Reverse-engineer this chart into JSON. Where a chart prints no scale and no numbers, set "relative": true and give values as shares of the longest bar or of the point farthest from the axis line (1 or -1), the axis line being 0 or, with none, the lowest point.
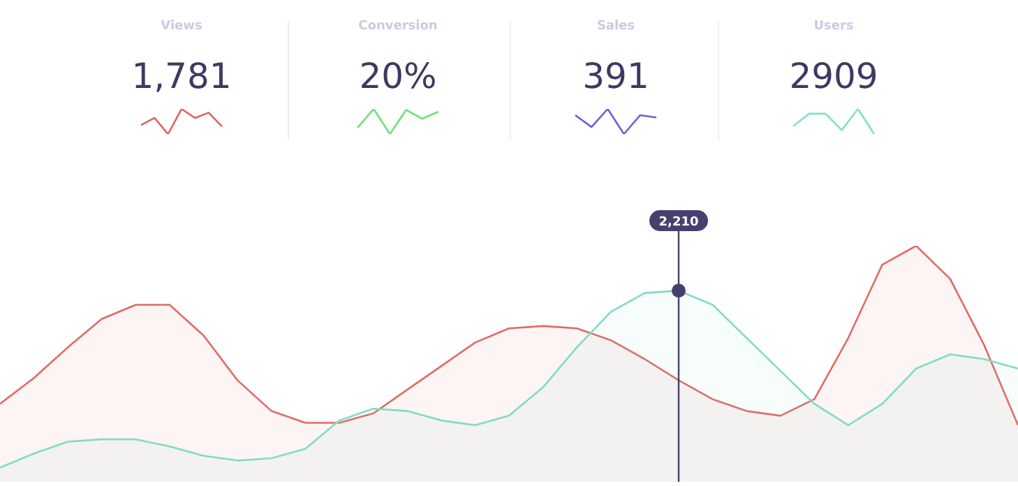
{
  "chart_data": [
    {
      "type": "line",
      "title": "Views",
      "annotations": [
        "1,781"
      ],
      "relative": true,
      "categories": [
        null,
        null,
        null,
        null,
        null,
        null,
        null
      ],
      "values": [
        0.36,
        0.64,
        0,
        1,
        0.64,
        0.85,
        0.3
      ],
      "color": "#e0625c"
    },
    {
      "type": "line",
      "title": "Conversion",
      "annotations": [
        "20%"
      ],
      "relative": true,
      "categories": [
        null,
        null,
        null,
        null,
        null,
        null
      ],
      "values": [
        0.25,
        1,
        0,
        0.96,
        0.61,
        0.89
      ],
      "color": "#6ee07a"
    },
    {
      "type": "line",
      "title": "Sales",
      "annotations": [
        "391"
      ],
      "relative": true,
      "categories": [
        null,
        null,
        null,
        null,
        null,
        null
      ],
      "values": [
        0.75,
        0.28,
        1,
        0,
        0.75,
        0.66
      ],
      "color": "#6a5fd6"
    },
    {
      "type": "line",
      "title": "Users",
      "annotations": [
        "2909"
      ],
      "relative": true,
      "categories": [
        null,
        null,
        null,
        null,
        null,
        null
      ],
      "values": [
        0.32,
        0.81,
        0.81,
        0.16,
        1,
        0
      ],
      "color": "#7de3c0"
    },
    {
      "type": "area",
      "relative": true,
      "categories": [
        null,
        null,
        null,
        null,
        null,
        null,
        null,
        null,
        null,
        null,
        null,
        null,
        null,
        null,
        null,
        null,
        null,
        null,
        null,
        null,
        null,
        null,
        null,
        null,
        null,
        null,
        null,
        null,
        null,
        null,
        null
      ],
      "series": [
        {
          "color": "#e06a66",
          "values": [
            0.33,
            0.44,
            0.57,
            0.69,
            0.75,
            0.75,
            0.62,
            0.43,
            0.3,
            0.25,
            0.25,
            0.29,
            0.39,
            0.49,
            0.59,
            0.65,
            0.66,
            0.65,
            0.6,
            0.52,
            0.43,
            0.35,
            0.3,
            0.28,
            0.35,
            0.61,
            0.92,
            1,
            0.86,
            0.58,
            0.24
          ]
        },
        {
          "color": "#7fdcc4",
          "values": [
            0.06,
            0.12,
            0.17,
            0.18,
            0.18,
            0.15,
            0.11,
            0.09,
            0.1,
            0.14,
            0.26,
            0.31,
            0.3,
            0.26,
            0.24,
            0.28,
            0.4,
            0.57,
            0.72,
            0.8,
            0.81,
            0.75,
            0.61,
            0.47,
            0.33,
            0.24,
            0.33,
            0.48,
            0.54,
            0.52,
            0.48
          ]
        }
      ],
      "annotations": [
        "2,210"
      ]
    }
  ]
}
